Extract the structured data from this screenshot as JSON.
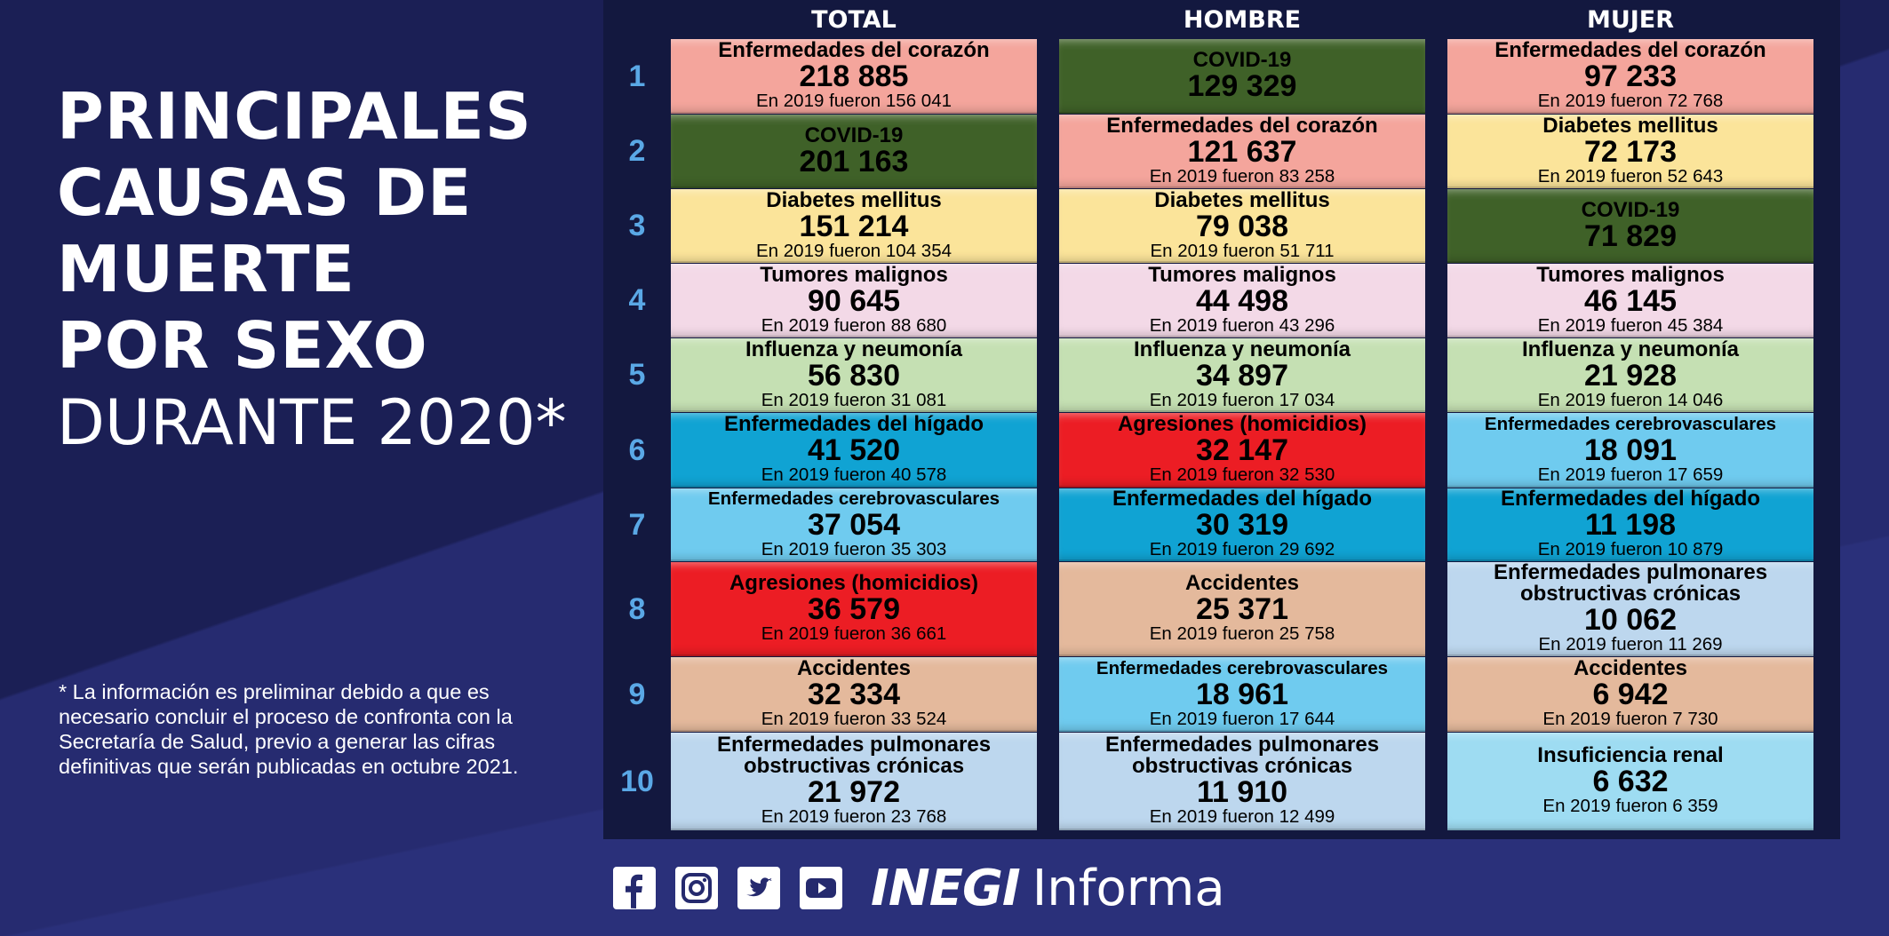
{
  "title": {
    "lines": [
      "PRINCIPALES",
      "CAUSAS DE",
      "MUERTE",
      "POR SEXO"
    ],
    "subtitle": "DURANTE 2020*"
  },
  "footnote": "* La información es preliminar debido a que es necesario concluir el proceso de confronta con la Secretaría de Salud, previo a generar las cifras definitivas que serán publicadas en octubre 2021.",
  "columns": [
    "TOTAL",
    "HOMBRE",
    "MUJER"
  ],
  "ranks": [
    "1",
    "2",
    "3",
    "4",
    "5",
    "6",
    "7",
    "8",
    "9",
    "10"
  ],
  "colors": {
    "heart": "#f4a59c",
    "covid": "#3f6128",
    "diabetes": "#fbe49a",
    "tumors": "#f3d9e7",
    "influenza": "#c5e0b3",
    "liver": "#10a3d3",
    "cerebro": "#6fcbef",
    "homicide": "#ec1d24",
    "accidents": "#e4b99c",
    "pulmonary": "#bdd7ee",
    "renal": "#9edcf2"
  },
  "table": {
    "total": [
      {
        "name": "Enfermedades del corazón",
        "value": "218 885",
        "prev": "En 2019 fueron 156 041",
        "color": "heart"
      },
      {
        "name": "COVID-19",
        "value": "201 163",
        "prev": "",
        "color": "covid"
      },
      {
        "name": "Diabetes mellitus",
        "value": "151 214",
        "prev": "En 2019 fueron 104 354",
        "color": "diabetes"
      },
      {
        "name": "Tumores malignos",
        "value": "90 645",
        "prev": "En 2019 fueron 88 680",
        "color": "tumors"
      },
      {
        "name": "Influenza y neumonía",
        "value": "56 830",
        "prev": "En 2019 fueron 31 081",
        "color": "influenza"
      },
      {
        "name": "Enfermedades del hígado",
        "value": "41 520",
        "prev": "En 2019 fueron 40 578",
        "color": "liver"
      },
      {
        "name": "Enfermedades cerebrovasculares",
        "value": "37 054",
        "prev": "En 2019 fueron 35 303",
        "color": "cerebro",
        "small": true
      },
      {
        "name": "Agresiones (homicidios)",
        "value": "36 579",
        "prev": "En 2019 fueron 36 661",
        "color": "homicide"
      },
      {
        "name": "Accidentes",
        "value": "32 334",
        "prev": "En 2019 fueron 33 524",
        "color": "accidents"
      },
      {
        "name": "Enfermedades pulmonares",
        "name2": "obstructivas crónicas",
        "value": "21 972",
        "prev": "En 2019 fueron 23 768",
        "color": "pulmonary"
      }
    ],
    "hombre": [
      {
        "name": "COVID-19",
        "value": "129 329",
        "prev": "",
        "color": "covid"
      },
      {
        "name": "Enfermedades del corazón",
        "value": "121 637",
        "prev": "En 2019 fueron 83 258",
        "color": "heart"
      },
      {
        "name": "Diabetes mellitus",
        "value": "79 038",
        "prev": "En 2019 fueron 51 711",
        "color": "diabetes"
      },
      {
        "name": "Tumores malignos",
        "value": "44 498",
        "prev": "En 2019 fueron 43 296",
        "color": "tumors"
      },
      {
        "name": "Influenza y neumonía",
        "value": "34 897",
        "prev": "En 2019 fueron 17 034",
        "color": "influenza"
      },
      {
        "name": "Agresiones (homicidios)",
        "value": "32 147",
        "prev": "En 2019 fueron 32 530",
        "color": "homicide"
      },
      {
        "name": "Enfermedades del hígado",
        "value": "30 319",
        "prev": "En 2019 fueron 29 692",
        "color": "liver"
      },
      {
        "name": "Accidentes",
        "value": "25 371",
        "prev": "En 2019 fueron 25 758",
        "color": "accidents"
      },
      {
        "name": "Enfermedades cerebrovasculares",
        "value": "18 961",
        "prev": "En 2019 fueron 17 644",
        "color": "cerebro",
        "small": true
      },
      {
        "name": "Enfermedades pulmonares",
        "name2": "obstructivas crónicas",
        "value": "11 910",
        "prev": "En 2019 fueron 12 499",
        "color": "pulmonary"
      }
    ],
    "mujer": [
      {
        "name": "Enfermedades del corazón",
        "value": "97 233",
        "prev": "En 2019 fueron 72 768",
        "color": "heart"
      },
      {
        "name": "Diabetes mellitus",
        "value": "72 173",
        "prev": "En 2019 fueron 52 643",
        "color": "diabetes"
      },
      {
        "name": "COVID-19",
        "value": "71 829",
        "prev": "",
        "color": "covid"
      },
      {
        "name": "Tumores malignos",
        "value": "46 145",
        "prev": "En 2019 fueron 45 384",
        "color": "tumors"
      },
      {
        "name": "Influenza y neumonía",
        "value": "21 928",
        "prev": "En 2019 fueron 14 046",
        "color": "influenza"
      },
      {
        "name": "Enfermedades cerebrovasculares",
        "value": "18 091",
        "prev": "En 2019 fueron 17 659",
        "color": "cerebro",
        "small": true
      },
      {
        "name": "Enfermedades del hígado",
        "value": "11 198",
        "prev": "En 2019 fueron 10 879",
        "color": "liver"
      },
      {
        "name": "Enfermedades pulmonares",
        "name2": "obstructivas crónicas",
        "value": "10 062",
        "prev": "En 2019 fueron 11 269",
        "color": "pulmonary"
      },
      {
        "name": "Accidentes",
        "value": "6 942",
        "prev": "En 2019 fueron 7 730",
        "color": "accidents"
      },
      {
        "name": "Insuficiencia renal",
        "value": "6 632",
        "prev": "En 2019 fueron 6 359",
        "color": "renal"
      }
    ]
  },
  "footer": {
    "icons": [
      "facebook-icon",
      "instagram-icon",
      "twitter-icon",
      "youtube-icon"
    ],
    "brand_bold": "INEGI",
    "brand_light": "Informa"
  }
}
